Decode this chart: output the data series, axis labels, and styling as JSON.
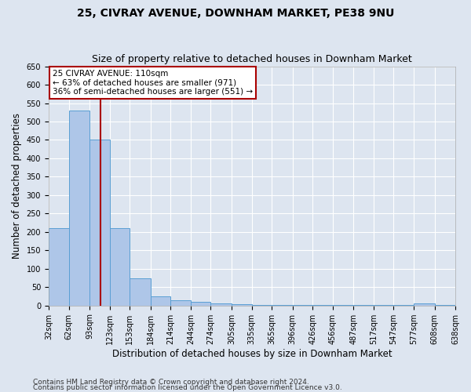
{
  "title": "25, CIVRAY AVENUE, DOWNHAM MARKET, PE38 9NU",
  "subtitle": "Size of property relative to detached houses in Downham Market",
  "xlabel": "Distribution of detached houses by size in Downham Market",
  "ylabel": "Number of detached properties",
  "footer1": "Contains HM Land Registry data © Crown copyright and database right 2024.",
  "footer2": "Contains public sector information licensed under the Open Government Licence v3.0.",
  "annotation_line1": "25 CIVRAY AVENUE: 110sqm",
  "annotation_line2": "← 63% of detached houses are smaller (971)",
  "annotation_line3": "36% of semi-detached houses are larger (551) →",
  "bar_left_edges": [
    32,
    62,
    93,
    123,
    153,
    184,
    214,
    244,
    274,
    305,
    335,
    365,
    396,
    426,
    456,
    487,
    517,
    547,
    577,
    608
  ],
  "bar_heights": [
    210,
    530,
    450,
    210,
    75,
    25,
    15,
    10,
    5,
    3,
    2,
    2,
    1,
    1,
    1,
    1,
    1,
    1,
    5,
    1
  ],
  "bar_color": "#aec6e8",
  "bar_edge_color": "#5a9fd4",
  "reference_line_x": 110,
  "reference_line_color": "#aa0000",
  "ylim": [
    0,
    650
  ],
  "yticks": [
    0,
    50,
    100,
    150,
    200,
    250,
    300,
    350,
    400,
    450,
    500,
    550,
    600,
    650
  ],
  "xtick_labels": [
    "32sqm",
    "62sqm",
    "93sqm",
    "123sqm",
    "153sqm",
    "184sqm",
    "214sqm",
    "244sqm",
    "274sqm",
    "305sqm",
    "335sqm",
    "365sqm",
    "396sqm",
    "426sqm",
    "456sqm",
    "487sqm",
    "517sqm",
    "547sqm",
    "577sqm",
    "608sqm",
    "638sqm"
  ],
  "annotation_box_color": "#ffffff",
  "annotation_box_edge": "#aa0000",
  "background_color": "#dde5f0",
  "plot_bg_color": "#dde5f0",
  "title_fontsize": 10,
  "subtitle_fontsize": 9,
  "tick_fontsize": 7,
  "ylabel_fontsize": 8.5,
  "xlabel_fontsize": 8.5,
  "footer_fontsize": 6.5
}
